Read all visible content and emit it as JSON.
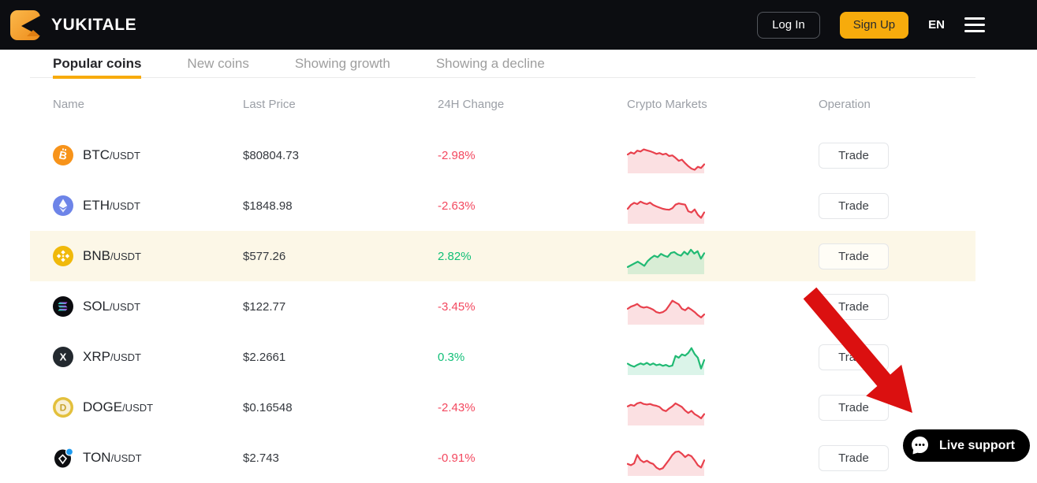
{
  "header": {
    "brand": "YUKITALE",
    "login_label": "Log In",
    "signup_label": "Sign Up",
    "language": "EN",
    "icons": {
      "logo": "yukitale-k-logo",
      "menu": "hamburger-menu-icon"
    }
  },
  "tabs": [
    {
      "label": "Popular coins",
      "active": true
    },
    {
      "label": "New coins",
      "active": false
    },
    {
      "label": "Showing growth",
      "active": false
    },
    {
      "label": "Showing a decline",
      "active": false
    }
  ],
  "table": {
    "columns": [
      "Name",
      "Last Price",
      "24H Change",
      "Crypto Markets",
      "Operation"
    ],
    "trade_label": "Trade",
    "rows": [
      {
        "symbol": "BTC",
        "pair": "/USDT",
        "price": "$80804.73",
        "change": "-2.98%",
        "trend": "down",
        "highlighted": false,
        "icon": "btc-coin-icon",
        "spark": [
          55,
          62,
          58,
          68,
          65,
          72,
          69,
          66,
          62,
          57,
          60,
          55,
          58,
          50,
          52,
          44,
          34,
          38,
          26,
          16,
          8,
          4,
          14,
          10,
          22
        ]
      },
      {
        "symbol": "ETH",
        "pair": "/USDT",
        "price": "$1848.98",
        "change": "-2.63%",
        "trend": "down",
        "highlighted": false,
        "icon": "eth-coin-icon",
        "spark": [
          42,
          55,
          62,
          58,
          66,
          61,
          58,
          63,
          55,
          50,
          46,
          42,
          40,
          39,
          44,
          56,
          60,
          58,
          56,
          34,
          30,
          40,
          22,
          12,
          30
        ]
      },
      {
        "symbol": "BNB",
        "pair": "/USDT",
        "price": "$577.26",
        "change": "2.82%",
        "trend": "up",
        "highlighted": true,
        "icon": "bnb-coin-icon",
        "spark": [
          16,
          22,
          28,
          34,
          27,
          20,
          36,
          46,
          54,
          49,
          60,
          54,
          50,
          63,
          66,
          58,
          54,
          67,
          58,
          74,
          61,
          69,
          44,
          62
        ]
      },
      {
        "symbol": "SOL",
        "pair": "/USDT",
        "price": "$122.77",
        "change": "-3.45%",
        "trend": "down",
        "highlighted": false,
        "icon": "sol-coin-icon",
        "spark": [
          45,
          52,
          56,
          61,
          52,
          49,
          51,
          47,
          42,
          34,
          31,
          34,
          41,
          56,
          72,
          66,
          60,
          45,
          40,
          49,
          42,
          34,
          24,
          16,
          26
        ]
      },
      {
        "symbol": "XRP",
        "pair": "/USDT",
        "price": "$2.2661",
        "change": "0.3%",
        "trend": "up",
        "highlighted": false,
        "icon": "xrp-coin-icon",
        "spark": [
          30,
          24,
          20,
          26,
          31,
          27,
          33,
          26,
          31,
          25,
          28,
          23,
          26,
          21,
          24,
          56,
          50,
          61,
          57,
          66,
          82,
          62,
          50,
          14,
          42
        ]
      },
      {
        "symbol": "DOGE",
        "pair": "/USDT",
        "price": "$0.16548",
        "change": "-2.43%",
        "trend": "down",
        "highlighted": false,
        "icon": "doge-coin-icon",
        "spark": [
          56,
          61,
          58,
          66,
          69,
          64,
          62,
          64,
          60,
          58,
          54,
          44,
          40,
          49,
          56,
          66,
          60,
          54,
          42,
          34,
          41,
          30,
          24,
          16,
          30
        ]
      },
      {
        "symbol": "TON",
        "pair": "/USDT",
        "price": "$2.743",
        "change": "-0.91%",
        "trend": "down",
        "highlighted": false,
        "icon": "ton-coin-icon",
        "spark": [
          32,
          28,
          34,
          62,
          45,
          38,
          43,
          36,
          32,
          20,
          14,
          18,
          32,
          46,
          62,
          72,
          74,
          66,
          55,
          63,
          58,
          44,
          28,
          20,
          44
        ]
      }
    ]
  },
  "support": {
    "label": "Live support",
    "icon": "chat-bubble-icon"
  },
  "annotation": {
    "icon": "red-annotation-arrow"
  },
  "colors": {
    "accent": "#F7AB0C",
    "up": "#10BF77",
    "down": "#F3485F",
    "spark_up": "#21BA74",
    "spark_down": "#E8414D",
    "highlight_row": "#FCF7E7",
    "arrow": "#DB1010"
  }
}
